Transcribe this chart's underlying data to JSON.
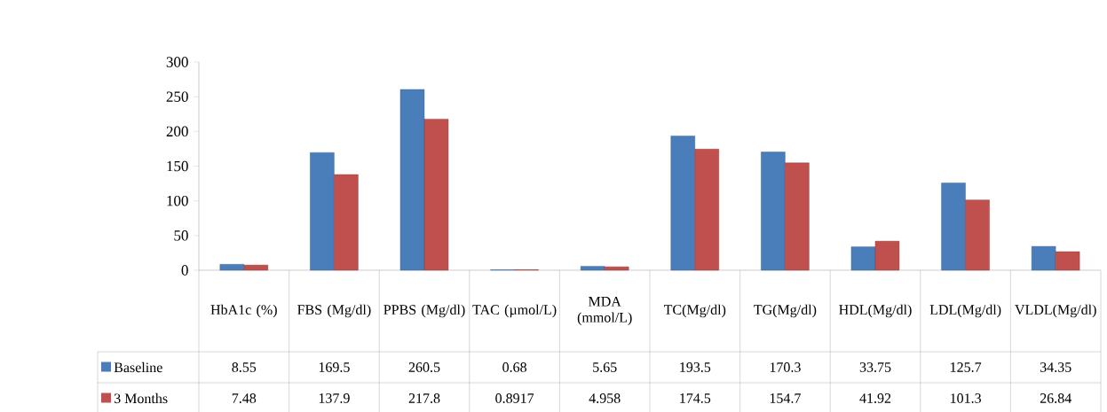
{
  "chart_data": {
    "type": "bar",
    "categories": [
      "HbA1c (%)",
      "FBS (Mg/dl)",
      "PPBS (Mg/dl)",
      "TAC (µmol/L)",
      "MDA (mmol/L)",
      "TC(Mg/dl)",
      "TG(Mg/dl)",
      "HDL(Mg/dl)",
      "LDL(Mg/dl)",
      "VLDL(Mg/dl)"
    ],
    "series": [
      {
        "name": "Baseline",
        "color": "#4a7ebb",
        "values": [
          8.55,
          169.5,
          260.5,
          0.68,
          5.65,
          193.5,
          170.3,
          33.75,
          125.7,
          34.35
        ]
      },
      {
        "name": "3 Months",
        "color": "#c0504d",
        "values": [
          7.48,
          137.9,
          217.8,
          0.8917,
          4.958,
          174.5,
          154.7,
          41.92,
          101.3,
          26.84
        ]
      }
    ],
    "ylim": [
      0,
      300
    ],
    "yticks": [
      0,
      50,
      100,
      150,
      200,
      250,
      300
    ],
    "data_labels": true,
    "legend": "bottom left"
  }
}
